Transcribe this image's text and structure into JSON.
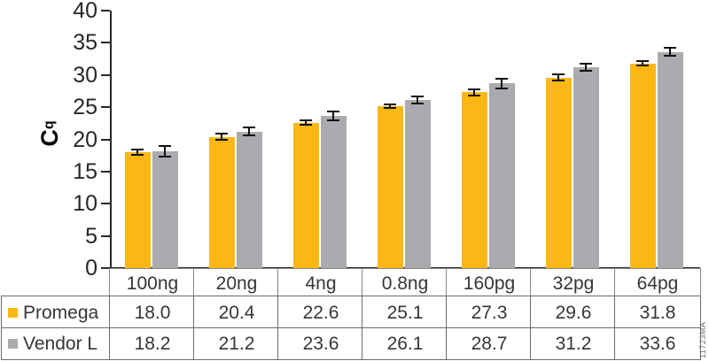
{
  "watermark": "11723MA",
  "chart_data": {
    "type": "bar",
    "title": "",
    "xlabel": "",
    "ylabel": {
      "main": "C",
      "sub": "q"
    },
    "ylim": [
      0,
      40
    ],
    "ytick_step": 5,
    "grid": false,
    "legend_position": "table-left",
    "categories": [
      "100ng",
      "20ng",
      "4ng",
      "0.8ng",
      "160pg",
      "32pg",
      "64pg"
    ],
    "series": [
      {
        "name": "Promega",
        "color": "#FDB714",
        "values": [
          18.0,
          20.4,
          22.6,
          25.1,
          27.3,
          29.6,
          31.8
        ],
        "errors": [
          0.25,
          0.3,
          0.25,
          0.15,
          0.3,
          0.3,
          0.25
        ]
      },
      {
        "name": "Vendor L",
        "color": "#A9ABAE",
        "values": [
          18.2,
          21.2,
          23.6,
          26.1,
          28.7,
          31.2,
          33.6
        ],
        "errors": [
          0.7,
          0.5,
          0.55,
          0.4,
          0.6,
          0.45,
          0.5
        ]
      }
    ]
  },
  "colors": {
    "axis": "#272727",
    "error_bar": "#111111",
    "header_border": "#87888a",
    "table_border": "#6a6c6e",
    "text": "#363636"
  }
}
